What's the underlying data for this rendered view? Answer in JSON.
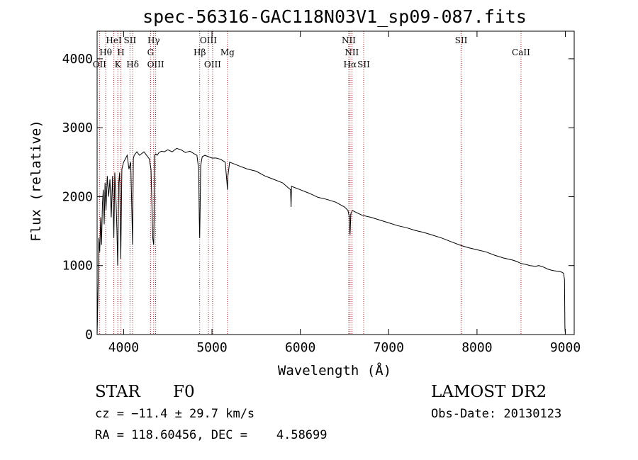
{
  "chart_data": {
    "type": "line",
    "title": "spec-56316-GAC118N03V1_sp09-087.fits",
    "xlabel": "Wavelength (Å)",
    "ylabel": "Flux (relative)",
    "xlim": [
      3700,
      9100
    ],
    "ylim": [
      0,
      4400
    ],
    "xticks": [
      4000,
      5000,
      6000,
      7000,
      8000,
      9000
    ],
    "yticks": [
      0,
      1000,
      2000,
      3000,
      4000
    ],
    "grid": false,
    "line_color": "#000000",
    "marker_color": "#b22222",
    "series": [
      {
        "x": [
          3700,
          3710,
          3720,
          3730,
          3740,
          3750,
          3760,
          3770,
          3780,
          3790,
          3800,
          3815,
          3830,
          3845,
          3860,
          3875,
          3889,
          3900,
          3915,
          3925,
          3933,
          3945,
          3955,
          3968,
          3980,
          3990,
          4000,
          4020,
          4040,
          4060,
          4080,
          4095,
          4101,
          4110,
          4120,
          4150,
          4180,
          4200,
          4230,
          4260,
          4290,
          4310,
          4330,
          4340,
          4345,
          4350,
          4365,
          4380,
          4400,
          4430,
          4460,
          4500,
          4550,
          4600,
          4650,
          4700,
          4750,
          4800,
          4830,
          4850,
          4856,
          4861,
          4866,
          4872,
          4890,
          4920,
          4960,
          5000,
          5050,
          5100,
          5150,
          5170,
          5175,
          5180,
          5200,
          5300,
          5400,
          5500,
          5600,
          5700,
          5800,
          5890,
          5895,
          5900,
          6000,
          6100,
          6200,
          6300,
          6400,
          6500,
          6540,
          6555,
          6560,
          6563,
          6566,
          6572,
          6590,
          6620,
          6700,
          6800,
          6900,
          7000,
          7100,
          7200,
          7300,
          7400,
          7500,
          7600,
          7700,
          7800,
          7850,
          7900,
          8000,
          8100,
          8200,
          8300,
          8400,
          8450,
          8498,
          8542,
          8600,
          8662,
          8700,
          8750,
          8800,
          8850,
          8900,
          8950,
          8980,
          8990,
          8995,
          9000
        ],
        "y": [
          0,
          600,
          1400,
          1200,
          1700,
          1300,
          1900,
          2100,
          1600,
          2200,
          1800,
          2300,
          2000,
          2250,
          1700,
          2300,
          1400,
          2350,
          1900,
          1500,
          1000,
          2200,
          2350,
          1100,
          2400,
          2450,
          2500,
          2550,
          2600,
          2400,
          2500,
          1700,
          1300,
          2550,
          2600,
          2650,
          2600,
          2620,
          2650,
          2600,
          2550,
          2400,
          1400,
          1300,
          1700,
          2600,
          2620,
          2600,
          2640,
          2660,
          2650,
          2680,
          2650,
          2700,
          2680,
          2640,
          2660,
          2620,
          2600,
          2400,
          1700,
          1400,
          1800,
          2450,
          2580,
          2600,
          2580,
          2560,
          2560,
          2540,
          2500,
          2200,
          2100,
          2300,
          2500,
          2450,
          2400,
          2370,
          2300,
          2250,
          2200,
          2100,
          1850,
          2150,
          2100,
          2050,
          1990,
          1960,
          1920,
          1850,
          1800,
          1700,
          1500,
          1450,
          1550,
          1750,
          1800,
          1780,
          1730,
          1700,
          1660,
          1620,
          1580,
          1550,
          1510,
          1480,
          1440,
          1400,
          1350,
          1300,
          1280,
          1260,
          1230,
          1200,
          1150,
          1110,
          1080,
          1060,
          1030,
          1020,
          1000,
          990,
          1000,
          980,
          950,
          930,
          920,
          910,
          890,
          800,
          100,
          0
        ]
      }
    ],
    "line_markers": [
      {
        "label": "OII",
        "x": 3727,
        "row": 3
      },
      {
        "label": "Hθ",
        "x": 3797,
        "row": 2
      },
      {
        "label": "HeI",
        "x": 3889,
        "row": 1
      },
      {
        "label": "K",
        "x": 3934,
        "row": 3
      },
      {
        "label": "H",
        "x": 3969,
        "row": 2
      },
      {
        "label": "SII",
        "x": 4072,
        "row": 1
      },
      {
        "label": "Hδ",
        "x": 4102,
        "row": 3
      },
      {
        "label": "Hγ",
        "x": 4340,
        "row": 1
      },
      {
        "label": "G",
        "x": 4305,
        "row": 2
      },
      {
        "label": "OIII",
        "x": 4363,
        "row": 3
      },
      {
        "label": "Hβ",
        "x": 4861,
        "row": 2
      },
      {
        "label": "OIII",
        "x": 4959,
        "row": 1
      },
      {
        "label": "OIII",
        "x": 5007,
        "row": 3
      },
      {
        "label": "Mg",
        "x": 5175,
        "row": 2
      },
      {
        "label": "NII",
        "x": 6548,
        "row": 1
      },
      {
        "label": "NII",
        "x": 6583,
        "row": 2
      },
      {
        "label": "Hα",
        "x": 6563,
        "row": 3
      },
      {
        "label": "SII",
        "x": 6717,
        "row": 3
      },
      {
        "label": "SII",
        "x": 7820,
        "row": 1
      },
      {
        "label": "CaII",
        "x": 8498,
        "row": 2
      }
    ]
  },
  "info": {
    "class_label": "STAR",
    "subclass": "F0",
    "survey": "LAMOST DR2",
    "cz_text": "cz = −11.4 ± 29.7 km/s",
    "obs_date_text": "Obs-Date: 20130123",
    "coords_text": "RA = 118.60456, DEC =    4.58699"
  }
}
